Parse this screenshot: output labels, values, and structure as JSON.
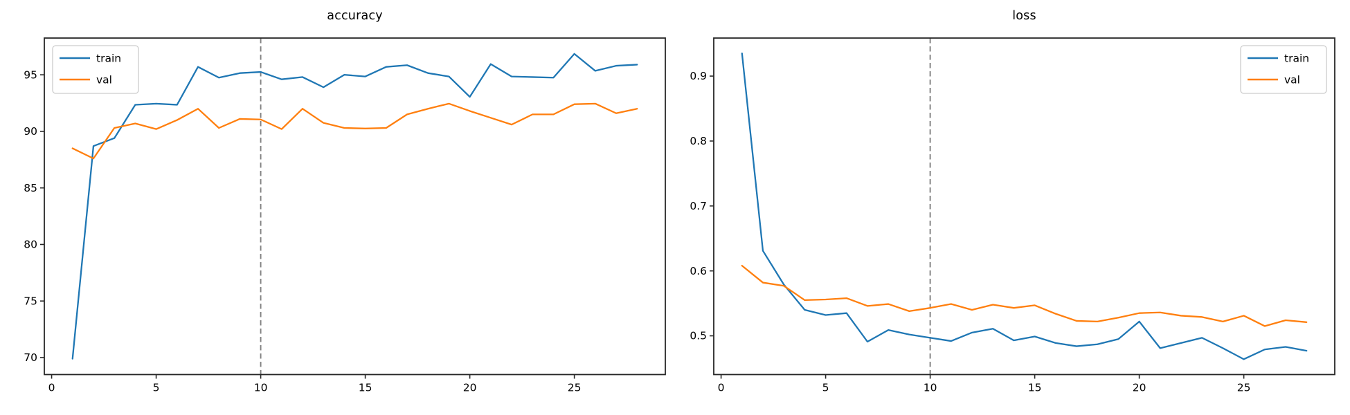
{
  "figure": {
    "background": "#ffffff",
    "axis_color": "#262626",
    "text_color": "#000000"
  },
  "chart_data": [
    {
      "type": "line",
      "title": "accuracy",
      "xlabel": "",
      "ylabel": "",
      "x": [
        1,
        2,
        3,
        4,
        5,
        6,
        7,
        8,
        9,
        10,
        11,
        12,
        13,
        14,
        15,
        16,
        17,
        18,
        19,
        20,
        21,
        22,
        23,
        24,
        25,
        26,
        27,
        28
      ],
      "xlim": [
        -0.35,
        29.35
      ],
      "ylim": [
        68.5,
        98.25
      ],
      "xticks": [
        0,
        5,
        10,
        15,
        20,
        25
      ],
      "xtick_labels": [
        "0",
        "5",
        "10",
        "15",
        "20",
        "25"
      ],
      "yticks": [
        70,
        75,
        80,
        85,
        90,
        95
      ],
      "ytick_labels": [
        "70",
        "75",
        "80",
        "85",
        "90",
        "95"
      ],
      "grid": false,
      "vline": {
        "x": 10,
        "style": "dashed",
        "color": "#808080"
      },
      "legend": {
        "position": "upper-left",
        "entries": [
          "train",
          "val"
        ]
      },
      "series": [
        {
          "name": "train",
          "color": "#1f77b4",
          "values": [
            69.9,
            88.7,
            89.4,
            92.35,
            92.45,
            92.35,
            95.7,
            94.75,
            95.15,
            95.25,
            94.6,
            94.8,
            93.9,
            95.0,
            94.85,
            95.7,
            95.85,
            95.15,
            94.85,
            93.05,
            95.95,
            94.85,
            94.8,
            94.75,
            96.85,
            95.35,
            95.8,
            95.9
          ]
        },
        {
          "name": "val",
          "color": "#ff7f0e",
          "values": [
            88.5,
            87.6,
            90.3,
            90.7,
            90.2,
            91.0,
            92.0,
            90.3,
            91.1,
            91.05,
            90.2,
            92.0,
            90.75,
            90.3,
            90.25,
            90.3,
            91.5,
            92.0,
            92.45,
            91.8,
            91.2,
            90.6,
            91.5,
            91.5,
            92.4,
            92.45,
            91.6,
            92.0
          ]
        }
      ]
    },
    {
      "type": "line",
      "title": "loss",
      "xlabel": "",
      "ylabel": "",
      "x": [
        1,
        2,
        3,
        4,
        5,
        6,
        7,
        8,
        9,
        10,
        11,
        12,
        13,
        14,
        15,
        16,
        17,
        18,
        19,
        20,
        21,
        22,
        23,
        24,
        25,
        26,
        27,
        28
      ],
      "xlim": [
        -0.35,
        29.35
      ],
      "ylim": [
        0.4404,
        0.9586
      ],
      "xticks": [
        0,
        5,
        10,
        15,
        20,
        25
      ],
      "xtick_labels": [
        "0",
        "5",
        "10",
        "15",
        "20",
        "25"
      ],
      "yticks": [
        0.5,
        0.6,
        0.7,
        0.8,
        0.9
      ],
      "ytick_labels": [
        "0.5",
        "0.6",
        "0.7",
        "0.8",
        "0.9"
      ],
      "grid": false,
      "vline": {
        "x": 10,
        "style": "dashed",
        "color": "#808080"
      },
      "legend": {
        "position": "upper-right",
        "entries": [
          "train",
          "val"
        ]
      },
      "series": [
        {
          "name": "train",
          "color": "#1f77b4",
          "values": [
            0.935,
            0.631,
            0.579,
            0.54,
            0.532,
            0.535,
            0.491,
            0.509,
            0.502,
            0.497,
            0.492,
            0.505,
            0.511,
            0.493,
            0.499,
            0.489,
            0.484,
            0.487,
            0.495,
            0.522,
            0.481,
            0.489,
            0.497,
            0.481,
            0.464,
            0.479,
            0.483,
            0.477
          ]
        },
        {
          "name": "val",
          "color": "#ff7f0e",
          "values": [
            0.608,
            0.582,
            0.577,
            0.555,
            0.556,
            0.558,
            0.546,
            0.549,
            0.538,
            0.543,
            0.549,
            0.54,
            0.548,
            0.543,
            0.547,
            0.534,
            0.523,
            0.522,
            0.528,
            0.535,
            0.536,
            0.531,
            0.529,
            0.522,
            0.531,
            0.515,
            0.524,
            0.521
          ]
        }
      ]
    }
  ]
}
